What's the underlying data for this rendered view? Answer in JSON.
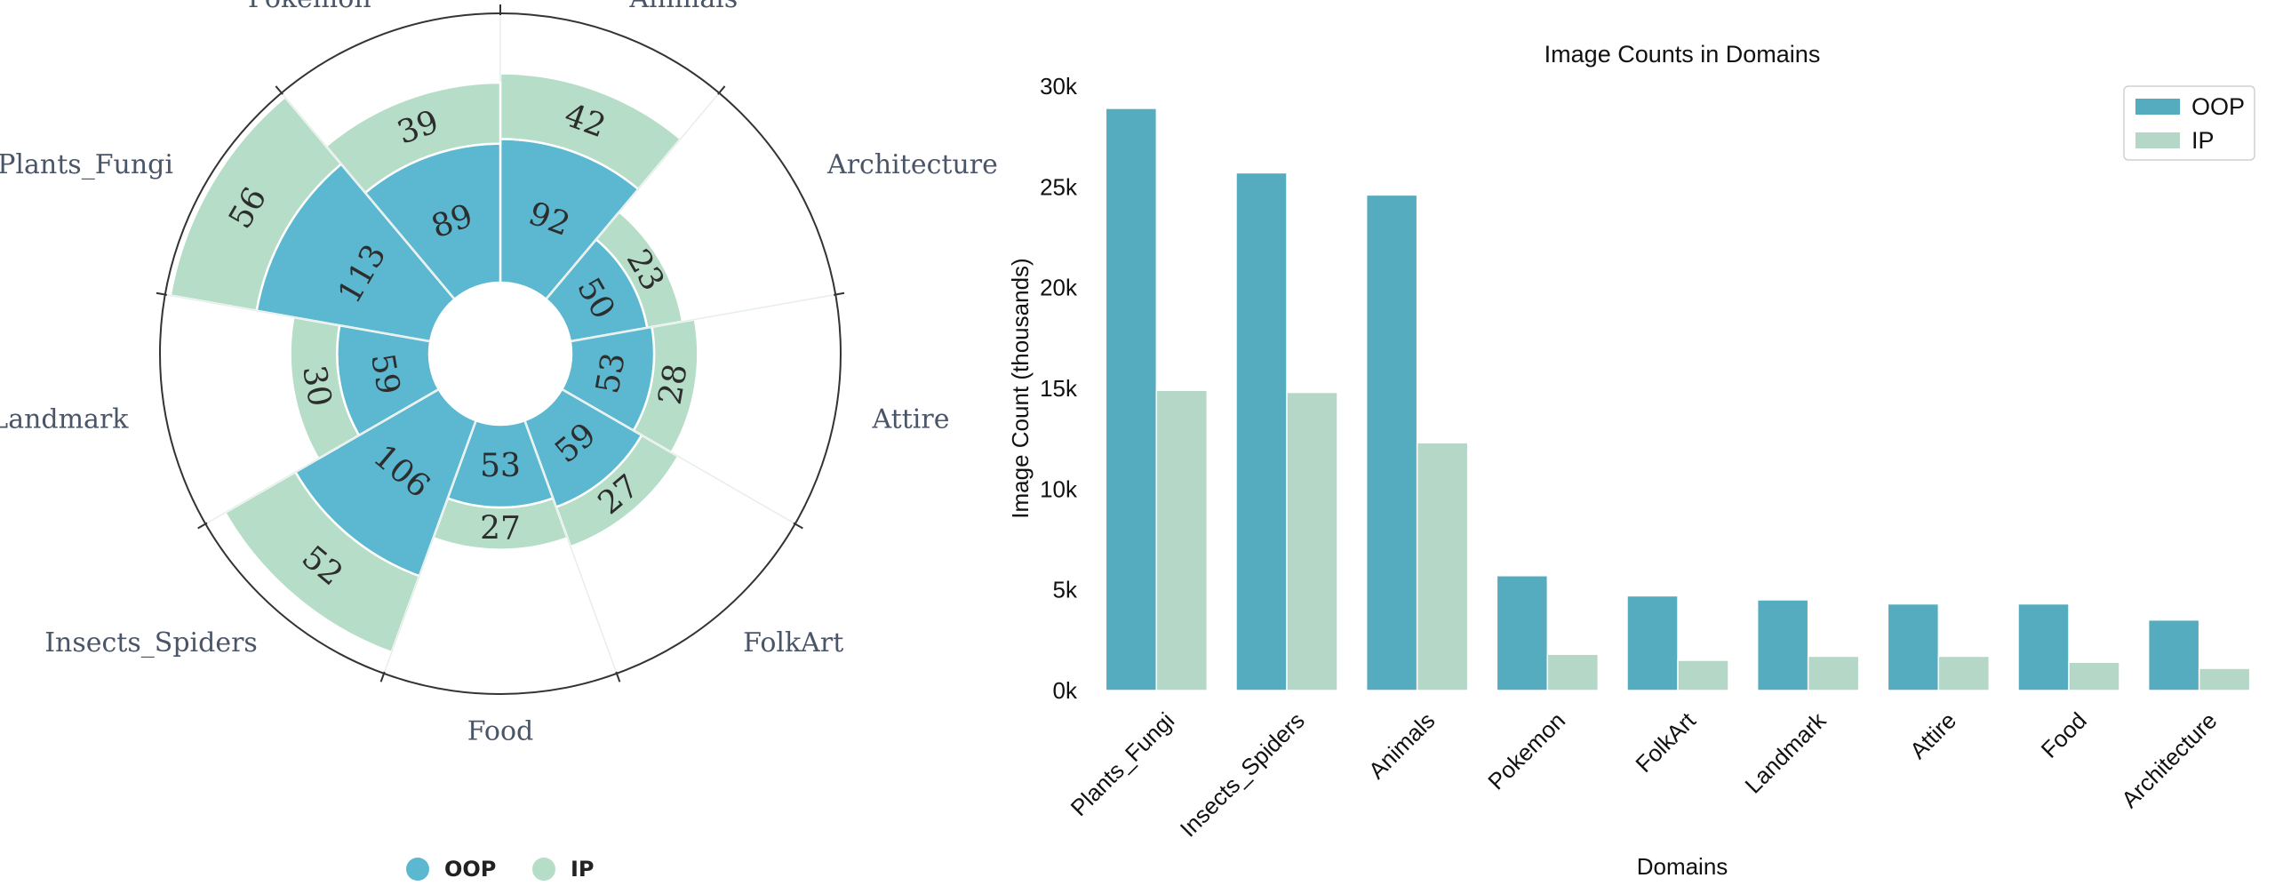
{
  "colors": {
    "oop": "#5bb8d0",
    "ip": "#b5ddc8",
    "bar_oop": "#55acbf",
    "bar_ip": "#b4d7c8"
  },
  "chart_data": [
    {
      "type": "polar-bar",
      "categories": [
        "Animals",
        "Architecture",
        "Attire",
        "FolkArt",
        "Food",
        "Insects_Spiders",
        "Landmark",
        "Plants_Fungi",
        "Pokemon"
      ],
      "series": [
        {
          "name": "OOP",
          "values": [
            92,
            50,
            53,
            59,
            53,
            106,
            59,
            113,
            89
          ]
        },
        {
          "name": "IP",
          "values": [
            42,
            23,
            28,
            27,
            27,
            52,
            30,
            56,
            39
          ]
        }
      ],
      "legend": [
        "OOP",
        "IP"
      ],
      "legend_position": "bottom"
    },
    {
      "type": "bar",
      "title": "Image Counts in Domains",
      "xlabel": "Domains",
      "ylabel": "Image Count (thousands)",
      "categories": [
        "Plants_Fungi",
        "Insects_Spiders",
        "Animals",
        "Pokemon",
        "FolkArt",
        "Landmark",
        "Attire",
        "Food",
        "Architecture"
      ],
      "series": [
        {
          "name": "OOP",
          "values": [
            28.9,
            25.7,
            24.6,
            5.7,
            4.7,
            4.5,
            4.3,
            4.3,
            3.5
          ]
        },
        {
          "name": "IP",
          "values": [
            14.9,
            14.8,
            12.3,
            1.8,
            1.5,
            1.7,
            1.7,
            1.4,
            1.1
          ]
        }
      ],
      "ylim": [
        0,
        30
      ],
      "yticks": [
        "0k",
        "5k",
        "10k",
        "15k",
        "20k",
        "25k",
        "30k"
      ],
      "ytick_values": [
        0,
        5,
        10,
        15,
        20,
        25,
        30
      ],
      "legend_position": "top-right",
      "grid": false
    }
  ]
}
